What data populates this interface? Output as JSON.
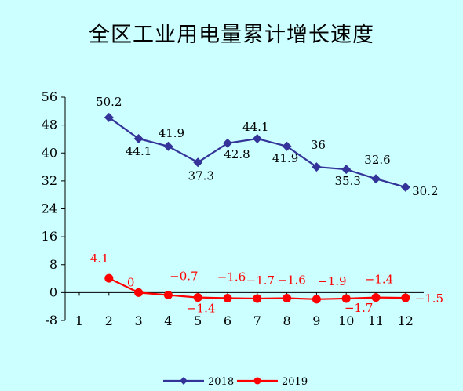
{
  "chart_data": {
    "type": "line",
    "title": "全区工业用电量累计增长速度",
    "x": [
      "1",
      "2",
      "3",
      "4",
      "5",
      "6",
      "7",
      "8",
      "9",
      "10",
      "11",
      "12"
    ],
    "y_ticks": [
      "56",
      "48",
      "40",
      "32",
      "24",
      "16",
      "8",
      "0",
      "-8"
    ],
    "ylim": [
      -8,
      56
    ],
    "series": [
      {
        "name": "2018",
        "color": "#333399",
        "marker": "diamond",
        "values": [
          null,
          50.2,
          44.1,
          41.9,
          37.3,
          42.8,
          44.1,
          41.9,
          36,
          35.3,
          32.6,
          30.2
        ],
        "labels": [
          "",
          "50.2",
          "44.1",
          "41.9",
          "37.3",
          "42.8",
          "44.1",
          "41.9",
          "36",
          "35.3",
          "32.6",
          "30.2"
        ]
      },
      {
        "name": "2019",
        "color": "#ff0000",
        "marker": "circle",
        "values": [
          null,
          4.1,
          0,
          -0.7,
          -1.4,
          -1.6,
          -1.7,
          -1.6,
          -1.9,
          -1.7,
          -1.4,
          -1.5
        ],
        "labels": [
          "",
          "4.1",
          "0",
          "-0.7",
          "-1.4",
          "-1.6",
          "-1.7",
          "-1.6",
          "-1.9",
          "-1.7",
          "-1.4",
          "-1.5"
        ]
      }
    ],
    "legend_position": "bottom",
    "grid": false
  }
}
